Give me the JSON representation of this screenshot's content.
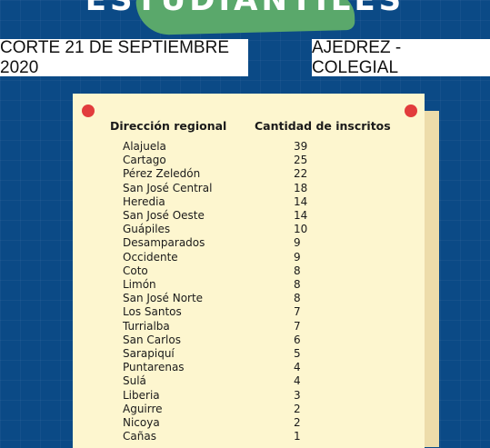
{
  "header": {
    "title": "ESTUDIANTILES",
    "date": "CORTE 21 DE SEPTIEMBRE 2020",
    "category": "AJEDREZ - COLEGIAL"
  },
  "table": {
    "columns": [
      "Dirección regional",
      "Cantidad de inscritos"
    ],
    "rows": [
      [
        "Alajuela",
        39
      ],
      [
        "Cartago",
        25
      ],
      [
        "Pérez Zeledón",
        22
      ],
      [
        "San José Central",
        18
      ],
      [
        "Heredia",
        14
      ],
      [
        "San José Oeste",
        14
      ],
      [
        "Guápiles",
        10
      ],
      [
        "Desamparados",
        9
      ],
      [
        "Occidente",
        9
      ],
      [
        "Coto",
        8
      ],
      [
        "Limón",
        8
      ],
      [
        "San José Norte",
        8
      ],
      [
        "Los Santos",
        7
      ],
      [
        "Turrialba",
        7
      ],
      [
        "San Carlos",
        6
      ],
      [
        "Sarapiquí",
        5
      ],
      [
        "Puntarenas",
        4
      ],
      [
        "Sulá",
        4
      ],
      [
        "Liberia",
        3
      ],
      [
        "Aguirre",
        2
      ],
      [
        "Nicoya",
        2
      ],
      [
        "Cañas",
        1
      ]
    ]
  }
}
